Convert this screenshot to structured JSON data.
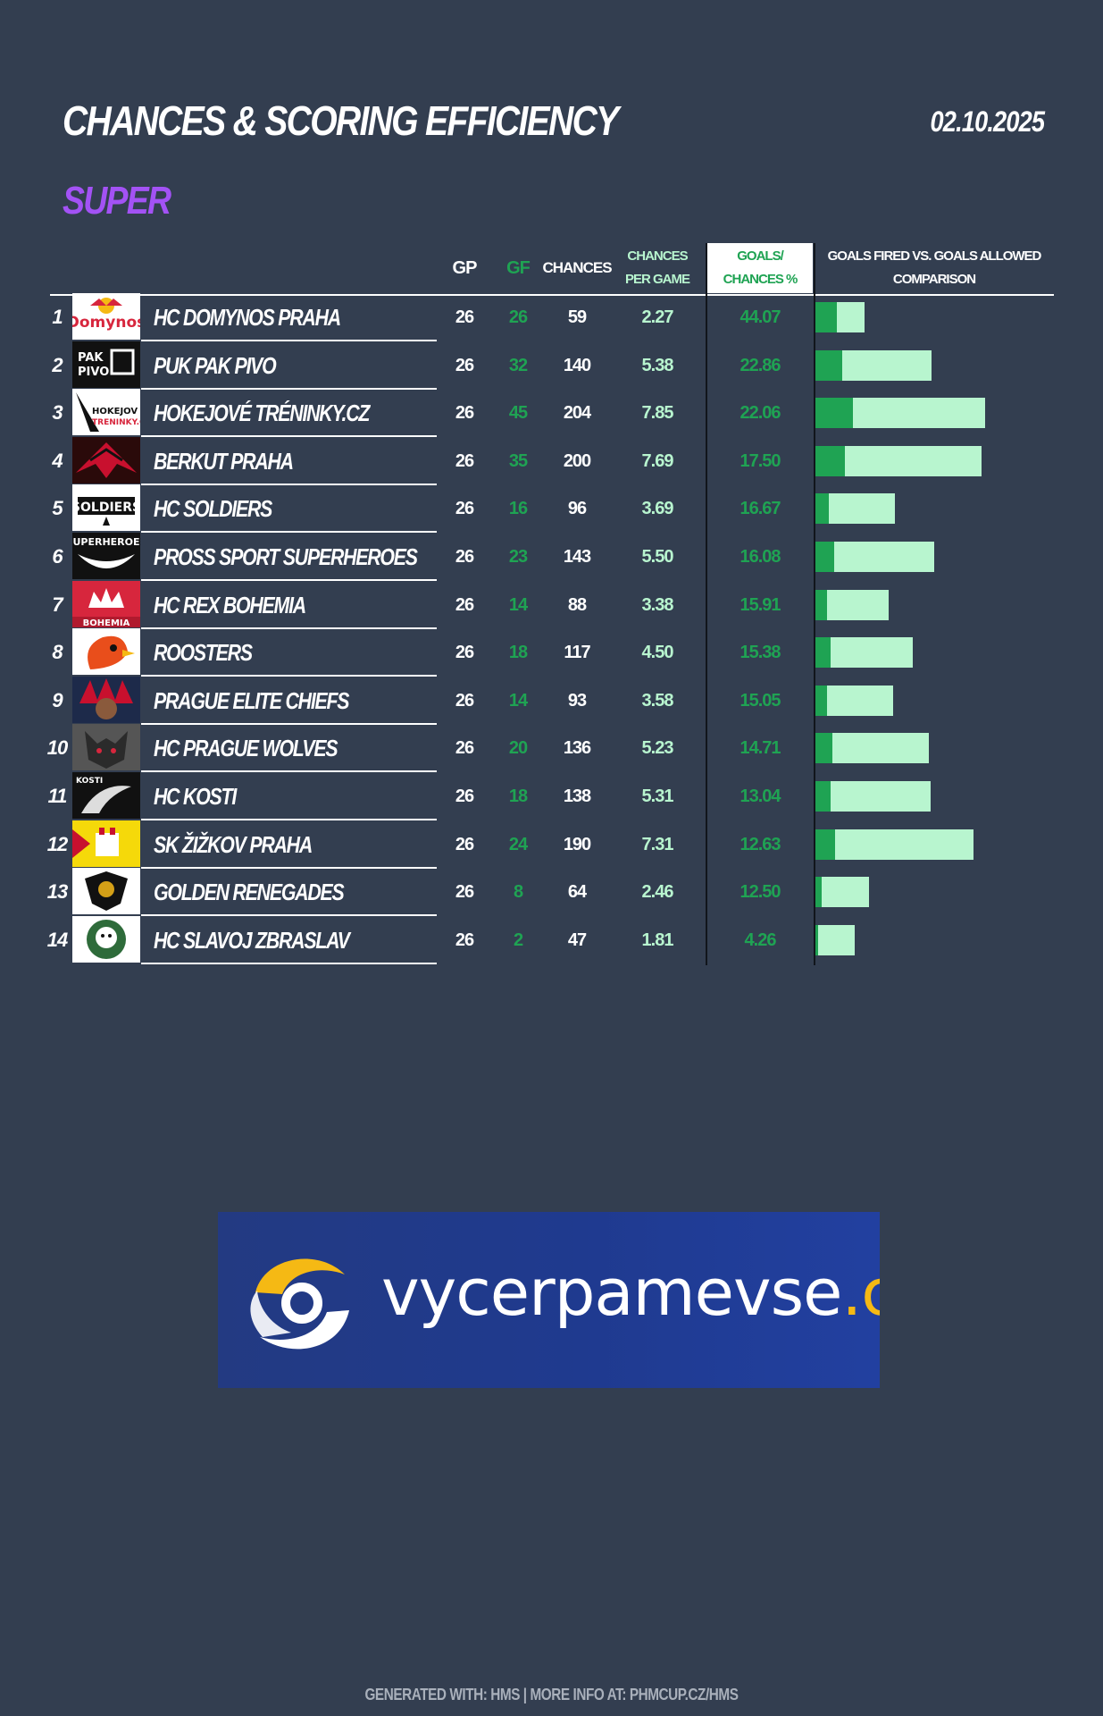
{
  "header": {
    "title": "CHANCES & SCORING EFFICIENCY",
    "date": "02.10.2025",
    "division": "SUPER"
  },
  "columns": {
    "gp": "GP",
    "gf": "GF",
    "chances": "CHANCES",
    "chances_per_game": "CHANCES PER GAME",
    "goals_chances_pct": "GOALS/ CHANCES %",
    "comparison": "GOALS FIRED VS. GOALS ALLOWED COMPARISON"
  },
  "colors": {
    "background": "#333e50",
    "division": "#a352f5",
    "gf": "#1fa353",
    "bar_goals": "#1fa353",
    "bar_total": "#b8f5cf"
  },
  "chart_data": {
    "type": "table",
    "bar_scale_max": 204,
    "rows": [
      {
        "rank": "1",
        "team": "HC DOMYNOS PRAHA",
        "logo": "domynos-logo",
        "gp": 26,
        "gf": 26,
        "chances": 59,
        "cpg": "2.27",
        "pct": "44.07"
      },
      {
        "rank": "2",
        "team": "PUK PAK PIVO",
        "logo": "puk-pak-pivo-logo",
        "gp": 26,
        "gf": 32,
        "chances": 140,
        "cpg": "5.38",
        "pct": "22.86"
      },
      {
        "rank": "3",
        "team": "HOKEJOVÉ TRÉNINKY.CZ",
        "logo": "hokejove-treninky-logo",
        "gp": 26,
        "gf": 45,
        "chances": 204,
        "cpg": "7.85",
        "pct": "22.06"
      },
      {
        "rank": "4",
        "team": "BERKUT PRAHA",
        "logo": "berkut-logo",
        "gp": 26,
        "gf": 35,
        "chances": 200,
        "cpg": "7.69",
        "pct": "17.50"
      },
      {
        "rank": "5",
        "team": "HC SOLDIERS",
        "logo": "soldiers-logo",
        "gp": 26,
        "gf": 16,
        "chances": 96,
        "cpg": "3.69",
        "pct": "16.67"
      },
      {
        "rank": "6",
        "team": "PROSS SPORT SUPERHEROES",
        "logo": "superheroes-logo",
        "gp": 26,
        "gf": 23,
        "chances": 143,
        "cpg": "5.50",
        "pct": "16.08"
      },
      {
        "rank": "7",
        "team": "HC REX BOHEMIA",
        "logo": "rex-bohemia-logo",
        "gp": 26,
        "gf": 14,
        "chances": 88,
        "cpg": "3.38",
        "pct": "15.91"
      },
      {
        "rank": "8",
        "team": "ROOSTERS",
        "logo": "roosters-logo",
        "gp": 26,
        "gf": 18,
        "chances": 117,
        "cpg": "4.50",
        "pct": "15.38"
      },
      {
        "rank": "9",
        "team": "PRAGUE ELITE CHIEFS",
        "logo": "chiefs-logo",
        "gp": 26,
        "gf": 14,
        "chances": 93,
        "cpg": "3.58",
        "pct": "15.05"
      },
      {
        "rank": "10",
        "team": "HC PRAGUE WOLVES",
        "logo": "wolves-logo",
        "gp": 26,
        "gf": 20,
        "chances": 136,
        "cpg": "5.23",
        "pct": "14.71"
      },
      {
        "rank": "11",
        "team": "HC KOSTI",
        "logo": "kosti-logo",
        "gp": 26,
        "gf": 18,
        "chances": 138,
        "cpg": "5.31",
        "pct": "13.04"
      },
      {
        "rank": "12",
        "team": "SK ŽIŽKOV PRAHA",
        "logo": "zizkov-logo",
        "gp": 26,
        "gf": 24,
        "chances": 190,
        "cpg": "7.31",
        "pct": "12.63"
      },
      {
        "rank": "13",
        "team": "GOLDEN RENEGADES",
        "logo": "renegades-logo",
        "gp": 26,
        "gf": 8,
        "chances": 64,
        "cpg": "2.46",
        "pct": "12.50"
      },
      {
        "rank": "14",
        "team": "HC SLAVOJ ZBRASLAV",
        "logo": "zbraslav-logo",
        "gp": 26,
        "gf": 2,
        "chances": 47,
        "cpg": "1.81",
        "pct": "4.26"
      }
    ]
  },
  "ad": {
    "text_main": "vycerpamevse",
    "text_tld": ".cz"
  },
  "footer": {
    "text": "GENERATED WITH: HMS | MORE INFO AT: PHMCUP.CZ/HMS"
  }
}
